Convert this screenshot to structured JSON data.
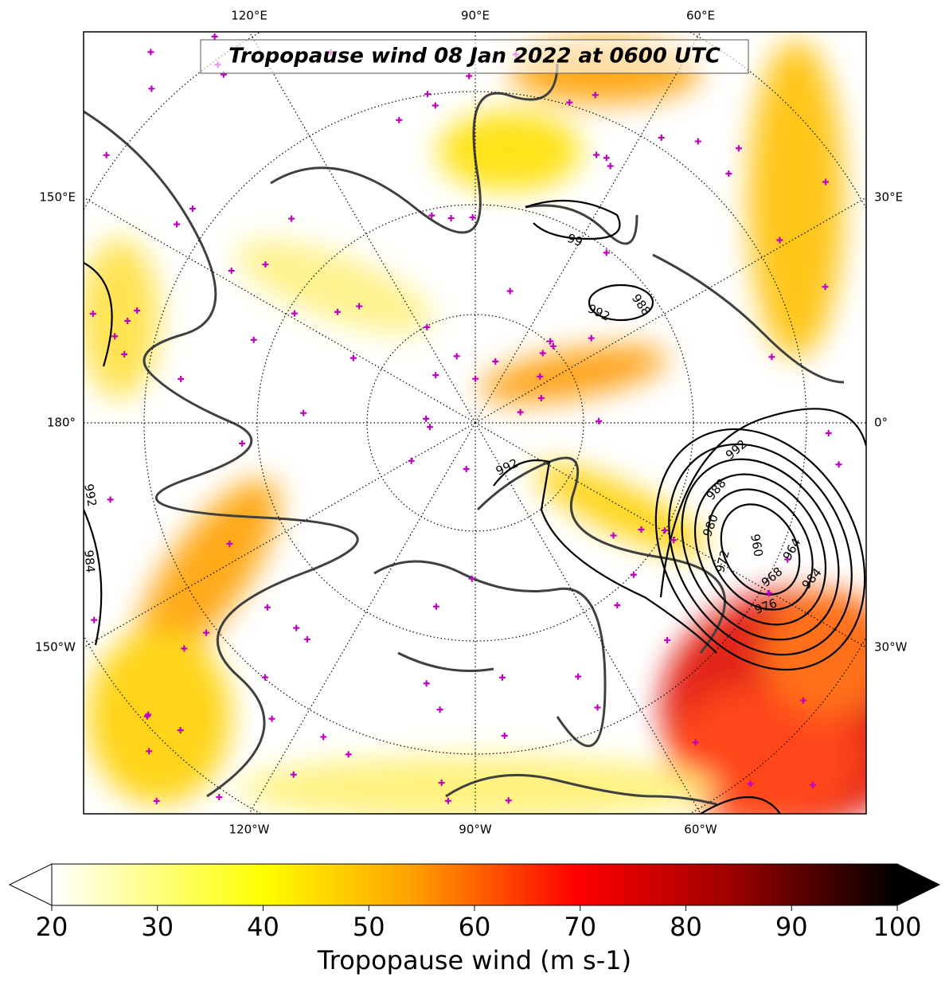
{
  "title": "Tropopause wind 08 Jan 2022 at 0600 UTC",
  "map": {
    "top_labels": [
      "120°E",
      "90°E",
      "60°E"
    ],
    "bottom_labels": [
      "120°W",
      "90°W",
      "60°W"
    ],
    "left_labels": [
      "150°E",
      "180°",
      "150°W"
    ],
    "right_labels": [
      "30°E",
      "0°",
      "30°W"
    ],
    "contour_labels": [
      "99",
      "992",
      "988",
      "992",
      "988",
      "980",
      "972",
      "960",
      "964",
      "968",
      "976",
      "984",
      "992",
      "992",
      "984"
    ]
  },
  "colorbar": {
    "lim": [
      20,
      100
    ],
    "ticks": [
      20,
      30,
      40,
      50,
      60,
      70,
      80,
      90,
      100
    ],
    "label": "Tropopause wind (m s-1)"
  }
}
